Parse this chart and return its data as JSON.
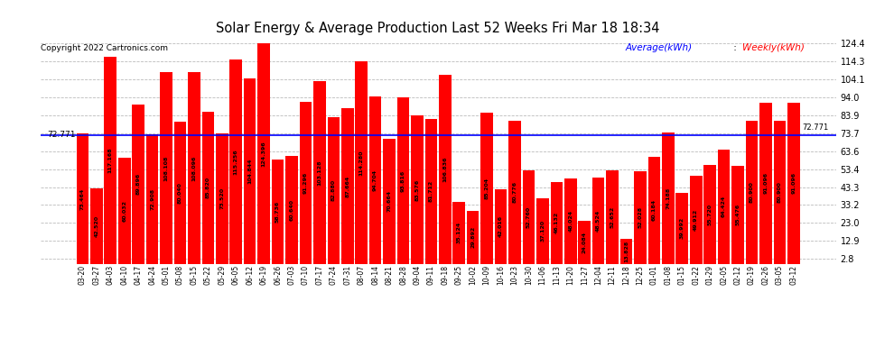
{
  "title": "Solar Energy & Average Production Last 52 Weeks Fri Mar 18 18:34",
  "copyright": "Copyright 2022 Cartronics.com",
  "average_value": 72.771,
  "average_label": "Average(kWh)",
  "weekly_label": "Weekly(kWh)",
  "bar_color": "#ff0000",
  "average_line_color": "#0000ff",
  "background_color": "#ffffff",
  "grid_color": "#bbbbbb",
  "yticks": [
    2.8,
    12.9,
    23.0,
    33.2,
    43.3,
    53.4,
    63.6,
    73.7,
    83.9,
    94.0,
    104.1,
    114.3,
    124.4
  ],
  "ylim": [
    0,
    128
  ],
  "categories": [
    "03-20",
    "03-27",
    "04-03",
    "04-10",
    "04-17",
    "04-24",
    "05-01",
    "05-08",
    "05-15",
    "05-22",
    "05-29",
    "06-05",
    "06-12",
    "06-19",
    "06-26",
    "07-03",
    "07-10",
    "07-17",
    "07-24",
    "07-31",
    "08-07",
    "08-14",
    "08-21",
    "08-28",
    "09-04",
    "09-11",
    "09-18",
    "09-25",
    "10-02",
    "10-09",
    "10-16",
    "10-23",
    "10-30",
    "11-06",
    "11-13",
    "11-20",
    "11-27",
    "12-04",
    "12-11",
    "12-18",
    "12-25",
    "01-01",
    "01-08",
    "01-15",
    "01-22",
    "01-29",
    "02-05",
    "02-12",
    "02-19",
    "02-26",
    "03-05",
    "03-12"
  ],
  "values": [
    73.464,
    42.52,
    117.168,
    60.032,
    89.896,
    72.908,
    108.108,
    80.04,
    108.096,
    85.82,
    73.52,
    115.256,
    104.844,
    124.396,
    58.736,
    60.64,
    91.296,
    103.128,
    82.88,
    87.664,
    114.28,
    94.704,
    70.664,
    93.816,
    83.576,
    81.712,
    106.836,
    35.124,
    29.892,
    85.204,
    42.016,
    80.776,
    52.76,
    37.12,
    46.132,
    48.024,
    24.084,
    48.524,
    52.652,
    13.828,
    52.028,
    60.184,
    74.188,
    39.992,
    49.912,
    55.72,
    64.424,
    55.476,
    80.9,
    91.096,
    80.9,
    91.096
  ],
  "bar_labels": [
    "73.464",
    "42.520",
    "117.168",
    "60.032",
    "89.896",
    "72.908",
    "108.108",
    "80.040",
    "108.096",
    "85.820",
    "73.520",
    "115.256",
    "104.844",
    "124.396",
    "58.736",
    "60.640",
    "91.296",
    "103.128",
    "82.880",
    "87.664",
    "114.280",
    "94.704",
    "70.664",
    "93.816",
    "83.576",
    "81.712",
    "106.836",
    "35.124",
    "29.892",
    "85.204",
    "42.016",
    "80.776",
    "52.760",
    "37.120",
    "46.132",
    "48.024",
    "24.084",
    "48.524",
    "52.652",
    "13.828",
    "52.028",
    "60.184",
    "74.188",
    "39.992",
    "49.912",
    "55.720",
    "64.424",
    "55.476",
    "80.900",
    "91.096",
    "80.900",
    "91.096"
  ]
}
